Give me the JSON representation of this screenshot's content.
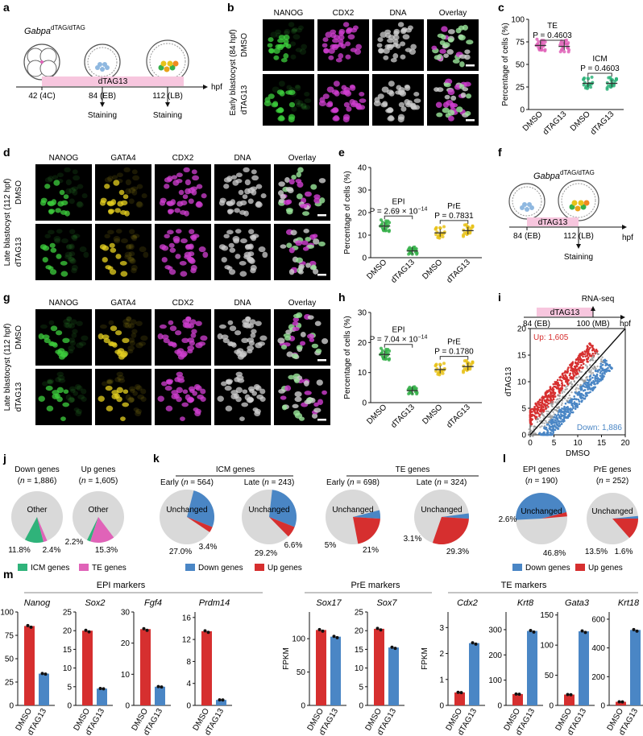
{
  "panel_letters": [
    "a",
    "b",
    "c",
    "d",
    "e",
    "f",
    "g",
    "h",
    "i",
    "j",
    "k",
    "l",
    "m"
  ],
  "a": {
    "genotype_base": "Gabpa",
    "genotype_sup": "dTAG/dTAG",
    "treatment": "dTAG13",
    "unit": "hpf",
    "timepoints": [
      "42 (4C)",
      "84 (EB)",
      "112 (LB)"
    ],
    "staining": [
      "Staining",
      "Staining"
    ]
  },
  "b": {
    "row_title": "Early blastocyst (84 hpf)",
    "columns": [
      "NANOG",
      "CDX2",
      "DNA",
      "Overlay"
    ],
    "rows": [
      "DMSO",
      "dTAG13"
    ]
  },
  "d": {
    "row_title": "Late blastocyst (112 hpf)",
    "columns": [
      "NANOG",
      "GATA4",
      "CDX2",
      "DNA",
      "Overlay"
    ],
    "rows": [
      "DMSO",
      "dTAG13"
    ]
  },
  "g": {
    "row_title": "Late blastocyst (112 hpf)",
    "columns": [
      "NANOG",
      "GATA4",
      "CDX2",
      "DNA",
      "Overlay"
    ],
    "rows": [
      "DMSO",
      "dTAG13"
    ]
  },
  "f": {
    "genotype_base": "Gabpa",
    "genotype_sup": "dTAG/dTAG",
    "treatment": "dTAG13",
    "unit": "hpf",
    "timepoints": [
      "84 (EB)",
      "112 (LB)"
    ],
    "staining": "Staining"
  },
  "colors": {
    "dmso_red": "#d62f2f",
    "dtag_blue": "#4a86c5",
    "te_pink": "#e063b8",
    "icm_green": "#2fb37a",
    "pre_yellow": "#e8c21a",
    "epi_green": "#36b04a",
    "band_pink": "#f7c6de",
    "pie_grey": "#d9d9d9"
  },
  "chart_data": [
    {
      "panel": "c",
      "type": "scatter",
      "ylabel": "Percentage of cells (%)",
      "ylim": [
        0,
        100
      ],
      "yticks": [
        "0",
        "25",
        "50",
        "75",
        "100"
      ],
      "categories": [
        "DMSO",
        "dTAG13",
        "DMSO",
        "dTAG13"
      ],
      "groups": [
        {
          "label": "TE",
          "p": "P = 0.4603",
          "color": "#e063b8",
          "means": [
            71,
            70
          ]
        },
        {
          "label": "ICM",
          "p": "P = 0.4603",
          "color": "#2fb37a",
          "means": [
            29,
            29
          ]
        }
      ]
    },
    {
      "panel": "e",
      "type": "scatter",
      "ylabel": "Percentage of cells (%)",
      "ylim": [
        0,
        40
      ],
      "yticks": [
        "0",
        "10",
        "20",
        "30",
        "40"
      ],
      "categories": [
        "DMSO",
        "dTAG13",
        "DMSO",
        "dTAG13"
      ],
      "groups": [
        {
          "label": "EPI",
          "p": "P = 2.69 × 10",
          "p_exp": "−14",
          "color": "#36b04a",
          "means": [
            14,
            3
          ]
        },
        {
          "label": "PrE",
          "p": "P = 0.7831",
          "color": "#e8c21a",
          "means": [
            11,
            12
          ]
        }
      ]
    },
    {
      "panel": "h",
      "type": "scatter",
      "ylabel": "Percentage of cells (%)",
      "ylim": [
        0,
        30
      ],
      "yticks": [
        "0",
        "10",
        "20",
        "30"
      ],
      "categories": [
        "DMSO",
        "dTAG13",
        "DMSO",
        "dTAG13"
      ],
      "groups": [
        {
          "label": "EPI",
          "p": "P = 7.04 × 10",
          "p_exp": "−14",
          "color": "#36b04a",
          "means": [
            16,
            4
          ]
        },
        {
          "label": "PrE",
          "p": "P = 0.1780",
          "color": "#e8c21a",
          "means": [
            11,
            12
          ]
        }
      ]
    },
    {
      "panel": "i",
      "type": "scatter",
      "xlabel": "DMSO",
      "ylabel": "dTAG13",
      "xlim": [
        0,
        20
      ],
      "ylim": [
        0,
        20
      ],
      "xticks": [
        "0",
        "5",
        "10",
        "15",
        "20"
      ],
      "yticks": [
        "0",
        "5",
        "10",
        "15",
        "20"
      ],
      "up_label": "Up: 1,605",
      "down_label": "Down: 1,886",
      "timeline": {
        "band": "dTAG13",
        "start": "84 (EB)",
        "end": "100 (MB)",
        "assay": "RNA-seq",
        "unit": "hpf"
      }
    },
    {
      "panel": "j",
      "type": "pie",
      "pies": [
        {
          "title": "Down genes",
          "n": "n = 1,886",
          "center": "Other",
          "slices": [
            {
              "name": "ICM genes",
              "value": 11.8,
              "color": "#2fb37a",
              "label": "11.8%"
            },
            {
              "name": "TE genes",
              "value": 2.4,
              "color": "#e063b8",
              "label": "2.4%"
            },
            {
              "name": "Other",
              "value": 85.8,
              "color": "#d9d9d9"
            }
          ]
        },
        {
          "title": "Up genes",
          "n": "n = 1,605",
          "center": "Other",
          "slices": [
            {
              "name": "ICM genes",
              "value": 2.2,
              "color": "#2fb37a",
              "label": "2.2%"
            },
            {
              "name": "TE genes",
              "value": 15.3,
              "color": "#e063b8",
              "label": "15.3%"
            },
            {
              "name": "Other",
              "value": 82.5,
              "color": "#d9d9d9"
            }
          ]
        }
      ],
      "legend": [
        {
          "name": "ICM genes",
          "color": "#2fb37a"
        },
        {
          "name": "TE genes",
          "color": "#e063b8"
        }
      ]
    },
    {
      "panel": "k",
      "type": "pie",
      "group_titles": [
        "ICM genes",
        "TE genes"
      ],
      "pies": [
        {
          "title": "Early (",
          "n": "n = 564",
          "center": "Unchanged",
          "down": 27.0,
          "up": 3.4,
          "down_label": "27.0%",
          "up_label": "3.4%"
        },
        {
          "title": "Late (",
          "n": "n = 243",
          "center": "Unchanged",
          "down": 29.2,
          "up": 6.6,
          "down_label": "29.2%",
          "up_label": "6.6%"
        },
        {
          "title": "Early (",
          "n": "n = 698",
          "center": "Unchanged",
          "down": 5,
          "up": 21,
          "down_label": "5%",
          "up_label": "21%"
        },
        {
          "title": "Late (",
          "n": "n = 324",
          "center": "Unchanged",
          "down": 3.1,
          "up": 29.3,
          "down_label": "3.1%",
          "up_label": "29.3%"
        }
      ],
      "legend": [
        {
          "name": "Down genes",
          "color": "#4a86c5"
        },
        {
          "name": "Up genes",
          "color": "#d62f2f"
        }
      ]
    },
    {
      "panel": "l",
      "type": "pie",
      "pies": [
        {
          "title": "EPI genes",
          "n": "n = 190",
          "center": "Unchanged",
          "down": 46.8,
          "up": 2.6,
          "down_label": "46.8%",
          "up_label": "2.6%"
        },
        {
          "title": "PrE genes",
          "n": "n = 252",
          "center": "Unchanged",
          "down": 1.6,
          "up": 13.5,
          "down_label": "1.6%",
          "up_label": "13.5%"
        }
      ],
      "legend": [
        {
          "name": "Down genes",
          "color": "#4a86c5"
        },
        {
          "name": "Up genes",
          "color": "#d62f2f"
        }
      ]
    },
    {
      "panel": "m",
      "type": "bar",
      "ylabel": "FPKM",
      "categories": [
        "DMSO",
        "dTAG13"
      ],
      "groups": [
        {
          "title": "EPI markers",
          "genes": [
            {
              "name": "Nanog",
              "values": [
                85,
                34
              ],
              "ylim": [
                0,
                100
              ],
              "ticks": [
                0,
                25,
                50,
                75,
                100
              ]
            },
            {
              "name": "Sox2",
              "values": [
                20,
                4.5
              ],
              "ylim": [
                0,
                25
              ],
              "ticks": [
                0,
                5,
                10,
                15,
                20,
                25
              ]
            },
            {
              "name": "Fgf4",
              "values": [
                24.5,
                6
              ],
              "ylim": [
                0,
                30
              ],
              "ticks": [
                0,
                10,
                20,
                30
              ]
            },
            {
              "name": "Prdm14",
              "values": [
                13.5,
                1
              ],
              "ylim": [
                0,
                17
              ],
              "ticks": [
                0,
                4,
                8,
                12,
                16
              ]
            }
          ]
        },
        {
          "title": "PrE markers",
          "genes": [
            {
              "name": "Sox17",
              "values": [
                113,
                103
              ],
              "ylim": [
                0,
                140
              ],
              "ticks": [
                0,
                50,
                100
              ]
            },
            {
              "name": "Sox7",
              "values": [
                20.5,
                15.5
              ],
              "ylim": [
                0,
                25
              ],
              "ticks": [
                0,
                5,
                10,
                15,
                20,
                25
              ]
            }
          ]
        },
        {
          "title": "TE markers",
          "genes": [
            {
              "name": "Cdx2",
              "values": [
                0.5,
                2.4
              ],
              "ylim": [
                0,
                3.6
              ],
              "ticks": [
                0,
                1,
                2,
                3
              ]
            },
            {
              "name": "Krt8",
              "values": [
                45,
                295
              ],
              "ylim": [
                0,
                370
              ],
              "ticks": [
                0,
                100,
                200,
                300
              ]
            },
            {
              "name": "Gata3",
              "values": [
                18,
                123
              ],
              "ylim": [
                0,
                155
              ],
              "ticks": [
                0,
                50,
                100,
                150
              ]
            },
            {
              "name": "Krt18",
              "values": [
                25,
                525
              ],
              "ylim": [
                0,
                650
              ],
              "ticks": [
                0,
                200,
                400,
                600
              ]
            }
          ]
        }
      ]
    }
  ]
}
